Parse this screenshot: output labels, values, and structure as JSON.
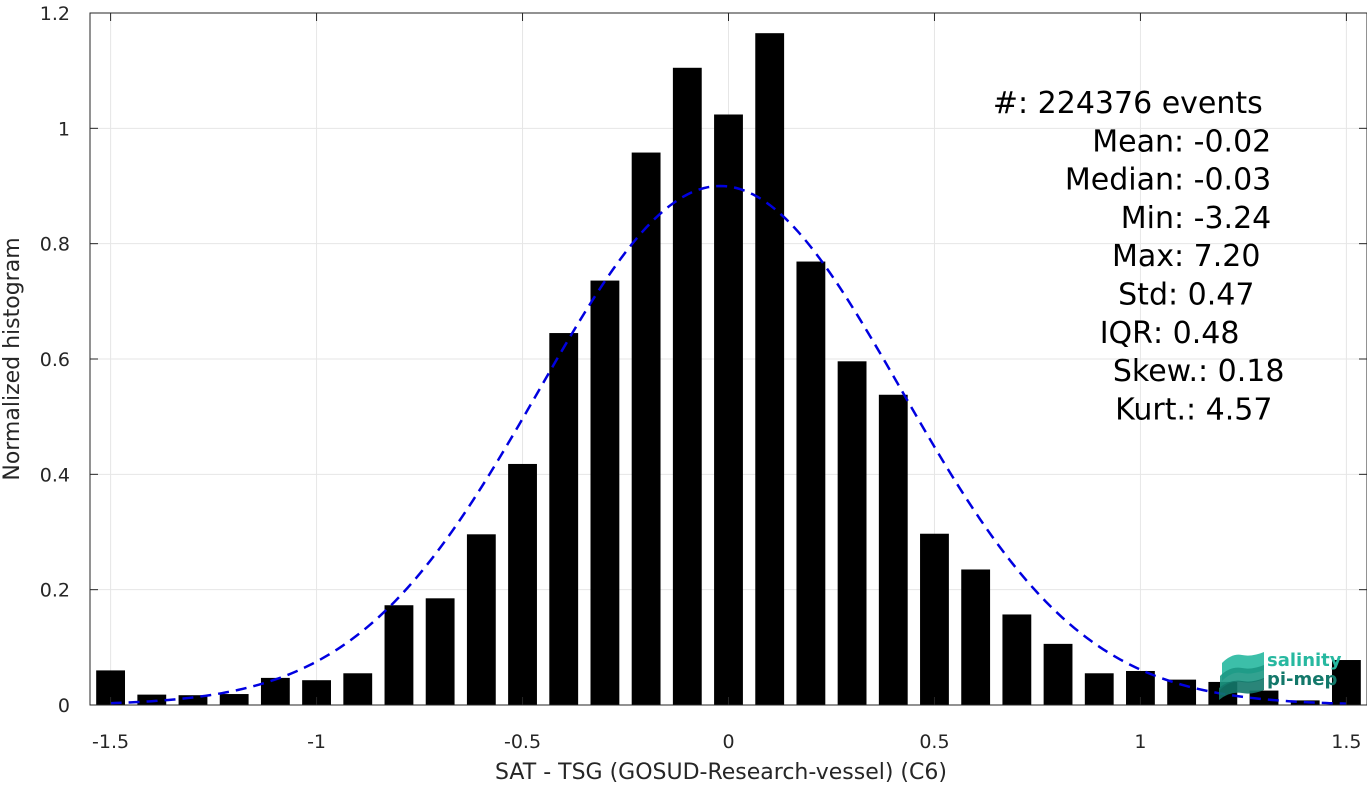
{
  "chart_data": {
    "type": "bar",
    "xlabel": "SAT - TSG (GOSUD-Research-vessel) (C6)",
    "ylabel": "Normalized histogram",
    "xlim": [
      -1.55,
      1.55
    ],
    "ylim": [
      0,
      1.2
    ],
    "xticks": [
      -1.5,
      -1,
      -0.5,
      0,
      0.5,
      1,
      1.5
    ],
    "xtick_labels": [
      "-1.5",
      "-1",
      "-0.5",
      "0",
      "0.5",
      "1",
      "1.5"
    ],
    "yticks": [
      0,
      0.2,
      0.4,
      0.6,
      0.8,
      1,
      1.2
    ],
    "ytick_labels": [
      "0",
      "0.2",
      "0.4",
      "0.6",
      "0.8",
      "1",
      "1.2"
    ],
    "grid": true,
    "bar_color": "#000000",
    "fit_color": "#0000e0",
    "bars": {
      "x": [
        -1.5,
        -1.4,
        -1.3,
        -1.2,
        -1.1,
        -1.0,
        -0.9,
        -0.8,
        -0.7,
        -0.6,
        -0.5,
        -0.4,
        -0.3,
        -0.2,
        -0.1,
        0.0,
        0.1,
        0.2,
        0.3,
        0.4,
        0.5,
        0.6,
        0.7,
        0.8,
        0.9,
        1.0,
        1.1,
        1.2,
        1.3,
        1.4,
        1.5
      ],
      "values": [
        0.06,
        0.018,
        0.017,
        0.019,
        0.047,
        0.043,
        0.055,
        0.173,
        0.185,
        0.296,
        0.418,
        0.645,
        0.736,
        0.958,
        1.105,
        1.024,
        1.165,
        0.769,
        0.596,
        0.538,
        0.297,
        0.235,
        0.157,
        0.106,
        0.055,
        0.059,
        0.044,
        0.04,
        0.025,
        0.008,
        0.078
      ]
    },
    "fit_curve": {
      "style": "dashed",
      "type": "gaussian",
      "mean": -0.02,
      "std": 0.44,
      "peak": 0.9
    },
    "stats": [
      {
        "label": "#  ",
        "value": ": 224376 events"
      },
      {
        "label": "Mean ",
        "value": ": -0.02"
      },
      {
        "label": "Median ",
        "value": ": -0.03"
      },
      {
        "label": "Min ",
        "value": ": -3.24"
      },
      {
        "label": "Max ",
        "value": ": 7.20"
      },
      {
        "label": "Std ",
        "value": ": 0.47"
      },
      {
        "label": "IQR ",
        "value": ": 0.48"
      },
      {
        "label": "Skew. ",
        "value": ": 0.18"
      },
      {
        "label": "Kurt. ",
        "value": ": 4.57"
      }
    ]
  },
  "logo": {
    "line1": "salinity",
    "line2": "pi-mep",
    "color1": "#27b8a0",
    "color2": "#13786a"
  }
}
